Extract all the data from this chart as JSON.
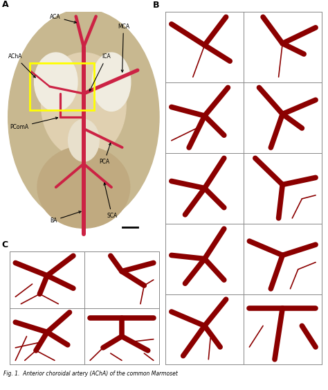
{
  "fig_width": 4.74,
  "fig_height": 5.63,
  "dpi": 100,
  "bg_color": "#ffffff",
  "artery_color": "#8b0000",
  "vessel_color_A": "#cc2244",
  "panel_A_label": "A",
  "panel_B_label": "B",
  "panel_C_label": "C",
  "caption": "Fig. 1.  Anterior choroidal artery (AChA) of the common Marmoset",
  "panel_label_fontsize": 9,
  "caption_fontsize": 5.5,
  "lw_B": 5.5,
  "lw_thin": 1.2,
  "B_drawings": [
    {
      "segs": [
        [
          [
            -0.85,
            0.65
          ],
          [
            0.0,
            0.05
          ]
        ],
        [
          [
            0.0,
            0.05
          ],
          [
            0.55,
            0.85
          ]
        ],
        [
          [
            0.0,
            0.05
          ],
          [
            0.65,
            -0.4
          ]
        ],
        [
          [
            0.0,
            0.05
          ],
          [
            -0.3,
            -0.85
          ]
        ]
      ],
      "lws": [
        5.5,
        5.5,
        5.5,
        1.2
      ]
    },
    {
      "segs": [
        [
          [
            -0.5,
            0.85
          ],
          [
            0.0,
            0.1
          ]
        ],
        [
          [
            0.0,
            0.1
          ],
          [
            0.85,
            0.55
          ]
        ],
        [
          [
            0.0,
            0.1
          ],
          [
            0.55,
            -0.2
          ]
        ],
        [
          [
            0.0,
            0.1
          ],
          [
            -0.1,
            -0.85
          ]
        ]
      ],
      "lws": [
        5.5,
        5.5,
        5.5,
        1.2
      ]
    },
    {
      "segs": [
        [
          [
            -0.85,
            0.3
          ],
          [
            0.0,
            0.05
          ]
        ],
        [
          [
            0.0,
            0.05
          ],
          [
            0.6,
            0.85
          ]
        ],
        [
          [
            0.0,
            0.05
          ],
          [
            0.5,
            -0.5
          ]
        ],
        [
          [
            0.0,
            0.05
          ],
          [
            -0.4,
            -0.85
          ]
        ],
        [
          [
            -0.2,
            -0.3
          ],
          [
            -0.85,
            -0.65
          ]
        ]
      ],
      "lws": [
        5.5,
        5.5,
        5.5,
        5.5,
        1.2
      ]
    },
    {
      "segs": [
        [
          [
            -0.6,
            0.85
          ],
          [
            0.0,
            0.1
          ]
        ],
        [
          [
            0.0,
            0.1
          ],
          [
            0.85,
            0.5
          ]
        ],
        [
          [
            0.0,
            0.1
          ],
          [
            0.5,
            -0.3
          ]
        ],
        [
          [
            0.0,
            0.1
          ],
          [
            -0.3,
            -0.85
          ]
        ]
      ],
      "lws": [
        5.5,
        5.5,
        5.5,
        5.5
      ]
    },
    {
      "segs": [
        [
          [
            -0.85,
            0.2
          ],
          [
            0.0,
            0.0
          ]
        ],
        [
          [
            0.0,
            0.0
          ],
          [
            0.5,
            0.85
          ]
        ],
        [
          [
            0.0,
            0.0
          ],
          [
            0.5,
            -0.55
          ]
        ],
        [
          [
            0.0,
            0.0
          ],
          [
            -0.5,
            -0.75
          ]
        ]
      ],
      "lws": [
        5.5,
        5.5,
        5.5,
        5.5
      ]
    },
    {
      "segs": [
        [
          [
            -0.7,
            0.85
          ],
          [
            0.0,
            0.1
          ]
        ],
        [
          [
            0.0,
            0.1
          ],
          [
            0.85,
            0.3
          ]
        ],
        [
          [
            0.0,
            0.1
          ],
          [
            -0.1,
            -0.85
          ]
        ],
        [
          [
            0.5,
            -0.3
          ],
          [
            0.85,
            -0.2
          ]
        ],
        [
          [
            0.5,
            -0.3
          ],
          [
            0.25,
            -0.85
          ]
        ]
      ],
      "lws": [
        5.5,
        5.5,
        5.5,
        1.2,
        1.2
      ]
    },
    {
      "segs": [
        [
          [
            -0.85,
            0.1
          ],
          [
            0.0,
            0.0
          ]
        ],
        [
          [
            0.0,
            0.0
          ],
          [
            0.5,
            0.85
          ]
        ],
        [
          [
            0.0,
            0.0
          ],
          [
            0.5,
            -0.6
          ]
        ],
        [
          [
            0.0,
            0.0
          ],
          [
            -0.5,
            -0.7
          ]
        ]
      ],
      "lws": [
        5.5,
        5.5,
        5.5,
        5.5
      ]
    },
    {
      "segs": [
        [
          [
            -0.85,
            0.5
          ],
          [
            0.0,
            0.1
          ]
        ],
        [
          [
            0.0,
            0.1
          ],
          [
            0.85,
            0.4
          ]
        ],
        [
          [
            0.0,
            0.1
          ],
          [
            -0.3,
            -0.85
          ]
        ],
        [
          [
            0.4,
            -0.3
          ],
          [
            0.85,
            -0.1
          ]
        ],
        [
          [
            0.4,
            -0.3
          ],
          [
            0.2,
            -0.85
          ]
        ]
      ],
      "lws": [
        5.5,
        5.5,
        5.5,
        1.2,
        1.2
      ]
    },
    {
      "segs": [
        [
          [
            -0.85,
            0.5
          ],
          [
            0.0,
            0.1
          ]
        ],
        [
          [
            0.0,
            0.1
          ],
          [
            0.55,
            0.85
          ]
        ],
        [
          [
            0.0,
            0.1
          ],
          [
            0.4,
            -0.5
          ]
        ],
        [
          [
            0.0,
            0.1
          ],
          [
            -0.55,
            -0.75
          ]
        ],
        [
          [
            0.15,
            -0.25
          ],
          [
            0.1,
            -0.85
          ]
        ]
      ],
      "lws": [
        5.5,
        5.5,
        5.5,
        5.5,
        1.2
      ]
    },
    {
      "segs": [
        [
          [
            -0.85,
            0.6
          ],
          [
            0.85,
            0.6
          ]
        ],
        [
          [
            0.0,
            0.6
          ],
          [
            -0.2,
            -0.85
          ]
        ],
        [
          [
            -0.5,
            0.1
          ],
          [
            -0.85,
            -0.5
          ]
        ],
        [
          [
            0.5,
            0.1
          ],
          [
            0.85,
            -0.5
          ]
        ]
      ],
      "lws": [
        5.5,
        5.5,
        1.2,
        5.5
      ]
    }
  ],
  "C_drawings": [
    {
      "segs": [
        [
          [
            -0.85,
            0.6
          ],
          [
            0.0,
            0.15
          ]
        ],
        [
          [
            0.0,
            0.15
          ],
          [
            0.7,
            0.85
          ]
        ],
        [
          [
            0.0,
            0.15
          ],
          [
            0.7,
            -0.3
          ]
        ],
        [
          [
            0.0,
            0.15
          ],
          [
            -0.2,
            -0.5
          ]
        ],
        [
          [
            -0.2,
            -0.5
          ],
          [
            -0.7,
            -0.85
          ]
        ],
        [
          [
            -0.2,
            -0.5
          ],
          [
            0.3,
            -0.85
          ]
        ],
        [
          [
            -0.4,
            -0.15
          ],
          [
            -0.85,
            -0.6
          ]
        ]
      ],
      "lws": [
        5.5,
        5.5,
        5.5,
        5.5,
        1.2,
        1.2,
        1.2
      ]
    },
    {
      "segs": [
        [
          [
            -0.3,
            0.85
          ],
          [
            0.0,
            0.3
          ]
        ],
        [
          [
            0.0,
            0.3
          ],
          [
            0.85,
            0.6
          ]
        ],
        [
          [
            0.0,
            0.3
          ],
          [
            0.6,
            -0.2
          ]
        ],
        [
          [
            0.6,
            -0.2
          ],
          [
            0.5,
            -0.85
          ]
        ],
        [
          [
            0.6,
            -0.2
          ],
          [
            0.85,
            0.0
          ]
        ]
      ],
      "lws": [
        5.5,
        5.5,
        5.5,
        1.2,
        1.2
      ]
    },
    {
      "segs": [
        [
          [
            -0.85,
            0.5
          ],
          [
            0.0,
            0.15
          ]
        ],
        [
          [
            0.0,
            0.15
          ],
          [
            0.6,
            0.85
          ]
        ],
        [
          [
            0.0,
            0.15
          ],
          [
            0.55,
            -0.3
          ]
        ],
        [
          [
            0.0,
            0.15
          ],
          [
            -0.3,
            -0.5
          ]
        ],
        [
          [
            -0.3,
            -0.5
          ],
          [
            -0.6,
            -0.85
          ]
        ],
        [
          [
            -0.3,
            -0.5
          ],
          [
            0.2,
            -0.85
          ]
        ],
        [
          [
            -0.15,
            -0.2
          ],
          [
            -0.85,
            -0.4
          ]
        ],
        [
          [
            -0.55,
            0.0
          ],
          [
            -0.85,
            -0.85
          ]
        ]
      ],
      "lws": [
        5.5,
        5.5,
        5.5,
        5.5,
        1.2,
        1.2,
        1.2,
        1.2
      ]
    },
    {
      "segs": [
        [
          [
            -0.85,
            0.65
          ],
          [
            0.85,
            0.65
          ]
        ],
        [
          [
            0.0,
            0.65
          ],
          [
            0.0,
            0.0
          ]
        ],
        [
          [
            0.0,
            0.0
          ],
          [
            -0.5,
            -0.4
          ]
        ],
        [
          [
            0.0,
            0.0
          ],
          [
            0.7,
            -0.5
          ]
        ],
        [
          [
            -0.5,
            -0.4
          ],
          [
            -0.85,
            -0.85
          ]
        ],
        [
          [
            -0.3,
            -0.6
          ],
          [
            0.0,
            -0.85
          ]
        ],
        [
          [
            0.2,
            -0.2
          ],
          [
            0.85,
            -0.1
          ]
        ],
        [
          [
            0.6,
            -0.6
          ],
          [
            0.85,
            -0.85
          ]
        ]
      ],
      "lws": [
        5.5,
        5.5,
        5.5,
        5.5,
        1.2,
        1.2,
        1.2,
        1.2
      ]
    }
  ]
}
